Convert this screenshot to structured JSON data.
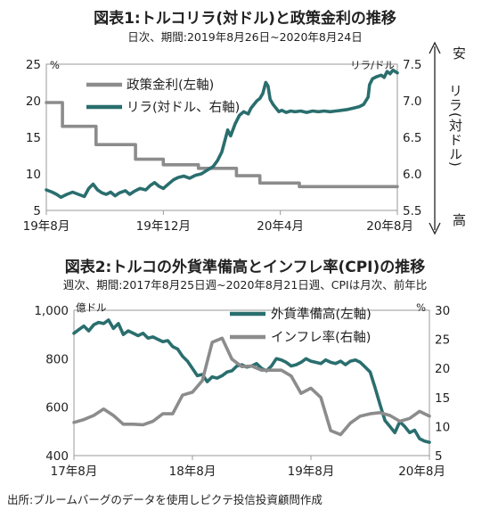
{
  "chart_data": [
    {
      "type": "line",
      "title": "図表1:トルコリラ(対ドル)と政策金利の推移",
      "subtitle": "日次、期間:2019年8月26日~2020年8月24日",
      "x_tick_labels": [
        "19年8月",
        "19年12月",
        "20年4月",
        "20年8月"
      ],
      "x_tick_months": [
        0,
        4,
        8,
        12
      ],
      "x_range_months": [
        0,
        12
      ],
      "y_left": {
        "unit": "%",
        "range": [
          5,
          25
        ],
        "ticks": [
          5,
          10,
          15,
          20,
          25
        ]
      },
      "y_right": {
        "unit": "リラ/ドル",
        "range": [
          5.5,
          7.5
        ],
        "ticks": [
          "5.5",
          "6.0",
          "6.5",
          "7.0",
          "7.5"
        ],
        "top_label": "安",
        "middle_label": "リラ(対ドル)",
        "bottom_label": "高"
      },
      "series": [
        {
          "name": "政策金利(左軸)",
          "axis": "left",
          "color": "#8c8c8c",
          "points": [
            [
              0,
              19.75
            ],
            [
              0.55,
              19.75
            ],
            [
              0.55,
              16.5
            ],
            [
              1.7,
              16.5
            ],
            [
              1.7,
              14.0
            ],
            [
              3.05,
              14.0
            ],
            [
              3.05,
              12.0
            ],
            [
              4.0,
              12.0
            ],
            [
              4.0,
              11.25
            ],
            [
              5.2,
              11.25
            ],
            [
              5.2,
              10.75
            ],
            [
              6.5,
              10.75
            ],
            [
              6.5,
              9.75
            ],
            [
              7.3,
              9.75
            ],
            [
              7.3,
              8.75
            ],
            [
              8.65,
              8.75
            ],
            [
              8.65,
              8.25
            ],
            [
              12,
              8.25
            ]
          ]
        },
        {
          "name": "リラ(対ドル、右軸)",
          "axis": "right",
          "color": "#2a6e6e",
          "points": [
            [
              0,
              5.78
            ],
            [
              0.2,
              5.75
            ],
            [
              0.35,
              5.72
            ],
            [
              0.5,
              5.68
            ],
            [
              0.7,
              5.72
            ],
            [
              0.9,
              5.75
            ],
            [
              1.1,
              5.72
            ],
            [
              1.3,
              5.69
            ],
            [
              1.45,
              5.8
            ],
            [
              1.6,
              5.86
            ],
            [
              1.75,
              5.78
            ],
            [
              1.9,
              5.74
            ],
            [
              2.05,
              5.72
            ],
            [
              2.2,
              5.75
            ],
            [
              2.35,
              5.7
            ],
            [
              2.5,
              5.74
            ],
            [
              2.7,
              5.77
            ],
            [
              2.85,
              5.72
            ],
            [
              3.0,
              5.76
            ],
            [
              3.2,
              5.8
            ],
            [
              3.4,
              5.78
            ],
            [
              3.55,
              5.84
            ],
            [
              3.7,
              5.88
            ],
            [
              3.85,
              5.83
            ],
            [
              4.0,
              5.8
            ],
            [
              4.2,
              5.87
            ],
            [
              4.35,
              5.92
            ],
            [
              4.5,
              5.95
            ],
            [
              4.7,
              5.97
            ],
            [
              4.9,
              5.94
            ],
            [
              5.1,
              5.98
            ],
            [
              5.3,
              6.0
            ],
            [
              5.5,
              6.05
            ],
            [
              5.7,
              6.1
            ],
            [
              5.85,
              6.18
            ],
            [
              6.0,
              6.3
            ],
            [
              6.1,
              6.45
            ],
            [
              6.2,
              6.6
            ],
            [
              6.3,
              6.52
            ],
            [
              6.45,
              6.68
            ],
            [
              6.6,
              6.8
            ],
            [
              6.75,
              6.85
            ],
            [
              6.9,
              6.82
            ],
            [
              7.0,
              6.9
            ],
            [
              7.1,
              6.95
            ],
            [
              7.2,
              7.0
            ],
            [
              7.3,
              7.03
            ],
            [
              7.4,
              7.1
            ],
            [
              7.5,
              7.25
            ],
            [
              7.58,
              7.2
            ],
            [
              7.65,
              7.02
            ],
            [
              7.75,
              6.95
            ],
            [
              7.85,
              6.9
            ],
            [
              7.95,
              6.85
            ],
            [
              8.05,
              6.87
            ],
            [
              8.2,
              6.84
            ],
            [
              8.35,
              6.86
            ],
            [
              8.5,
              6.85
            ],
            [
              8.7,
              6.86
            ],
            [
              8.9,
              6.84
            ],
            [
              9.1,
              6.86
            ],
            [
              9.3,
              6.85
            ],
            [
              9.5,
              6.86
            ],
            [
              9.7,
              6.85
            ],
            [
              9.9,
              6.86
            ],
            [
              10.1,
              6.87
            ],
            [
              10.3,
              6.88
            ],
            [
              10.5,
              6.9
            ],
            [
              10.7,
              6.92
            ],
            [
              10.85,
              6.95
            ],
            [
              11.0,
              7.05
            ],
            [
              11.05,
              7.22
            ],
            [
              11.15,
              7.3
            ],
            [
              11.3,
              7.33
            ],
            [
              11.45,
              7.35
            ],
            [
              11.55,
              7.32
            ],
            [
              11.65,
              7.4
            ],
            [
              11.75,
              7.37
            ],
            [
              11.85,
              7.42
            ],
            [
              12,
              7.38
            ]
          ]
        }
      ]
    },
    {
      "type": "line",
      "title": "図表2:トルコの外貨準備高とインフレ率(CPI)の推移",
      "subtitle": "週次、期間:2017年8月25日週~2020年8月21日週、CPIは月次、前年比",
      "x_tick_labels": [
        "17年8月",
        "18年8月",
        "19年8月",
        "20年8月"
      ],
      "x_tick_months": [
        0,
        12,
        24,
        36
      ],
      "x_range_months": [
        0,
        36
      ],
      "y_left": {
        "unit": "億ドル",
        "range": [
          400,
          1000
        ],
        "ticks": [
          "400",
          "600",
          "800",
          "1,000"
        ]
      },
      "y_right": {
        "unit": "%",
        "range": [
          5,
          30
        ],
        "ticks": [
          "5",
          "10",
          "15",
          "20",
          "25",
          "30"
        ]
      },
      "series": [
        {
          "name": "外貨準備高(左軸)",
          "axis": "left",
          "color": "#2a6e6e",
          "points": [
            [
              0,
              905
            ],
            [
              0.5,
              920
            ],
            [
              1,
              935
            ],
            [
              1.5,
              915
            ],
            [
              2,
              940
            ],
            [
              2.5,
              950
            ],
            [
              3,
              945
            ],
            [
              3.5,
              960
            ],
            [
              4,
              925
            ],
            [
              4.5,
              945
            ],
            [
              5,
              900
            ],
            [
              5.5,
              915
            ],
            [
              6,
              905
            ],
            [
              6.5,
              895
            ],
            [
              7,
              905
            ],
            [
              7.5,
              885
            ],
            [
              8,
              890
            ],
            [
              8.5,
              880
            ],
            [
              9,
              870
            ],
            [
              9.5,
              875
            ],
            [
              10,
              850
            ],
            [
              10.5,
              840
            ],
            [
              11,
              810
            ],
            [
              11.5,
              790
            ],
            [
              12,
              760
            ],
            [
              12.5,
              730
            ],
            [
              13,
              735
            ],
            [
              13.5,
              705
            ],
            [
              14,
              725
            ],
            [
              14.5,
              720
            ],
            [
              15,
              730
            ],
            [
              15.5,
              745
            ],
            [
              16,
              750
            ],
            [
              16.5,
              770
            ],
            [
              17,
              775
            ],
            [
              17.5,
              765
            ],
            [
              18,
              770
            ],
            [
              18.5,
              780
            ],
            [
              19,
              760
            ],
            [
              19.5,
              750
            ],
            [
              20,
              770
            ],
            [
              20.5,
              800
            ],
            [
              21,
              795
            ],
            [
              21.5,
              785
            ],
            [
              22,
              770
            ],
            [
              22.5,
              775
            ],
            [
              23,
              785
            ],
            [
              23.5,
              800
            ],
            [
              24,
              790
            ],
            [
              24.5,
              785
            ],
            [
              25,
              780
            ],
            [
              25.5,
              795
            ],
            [
              26,
              785
            ],
            [
              26.5,
              780
            ],
            [
              27,
              790
            ],
            [
              27.5,
              775
            ],
            [
              28,
              790
            ],
            [
              28.5,
              795
            ],
            [
              29,
              785
            ],
            [
              29.5,
              765
            ],
            [
              30,
              745
            ],
            [
              30.5,
              680
            ],
            [
              31,
              610
            ],
            [
              31.5,
              545
            ],
            [
              32,
              520
            ],
            [
              32.5,
              495
            ],
            [
              33,
              540
            ],
            [
              33.5,
              520
            ],
            [
              34,
              495
            ],
            [
              34.5,
              505
            ],
            [
              35,
              470
            ],
            [
              35.5,
              460
            ],
            [
              36,
              455
            ]
          ]
        },
        {
          "name": "インフレ率(右軸)",
          "axis": "right",
          "color": "#8c8c8c",
          "points": [
            [
              0,
              10.7
            ],
            [
              1,
              11.2
            ],
            [
              2,
              11.9
            ],
            [
              3,
              13.0
            ],
            [
              4,
              11.9
            ],
            [
              5,
              10.4
            ],
            [
              6,
              10.4
            ],
            [
              7,
              10.3
            ],
            [
              8,
              10.9
            ],
            [
              9,
              12.2
            ],
            [
              10,
              12.2
            ],
            [
              11,
              15.4
            ],
            [
              12,
              15.9
            ],
            [
              13,
              17.9
            ],
            [
              14,
              24.5
            ],
            [
              15,
              25.2
            ],
            [
              16,
              21.6
            ],
            [
              17,
              20.3
            ],
            [
              18,
              20.4
            ],
            [
              19,
              19.7
            ],
            [
              20,
              19.7
            ],
            [
              21,
              19.7
            ],
            [
              22,
              18.7
            ],
            [
              23,
              15.7
            ],
            [
              24,
              16.6
            ],
            [
              25,
              15.0
            ],
            [
              26,
              9.3
            ],
            [
              27,
              8.6
            ],
            [
              28,
              10.6
            ],
            [
              29,
              11.8
            ],
            [
              30,
              12.2
            ],
            [
              31,
              12.4
            ],
            [
              32,
              11.9
            ],
            [
              33,
              10.9
            ],
            [
              34,
              11.4
            ],
            [
              35,
              12.6
            ],
            [
              36,
              11.8
            ]
          ]
        }
      ]
    }
  ],
  "source": "出所:ブルームバーグのデータを使用しピクテ投信投資顧問作成"
}
